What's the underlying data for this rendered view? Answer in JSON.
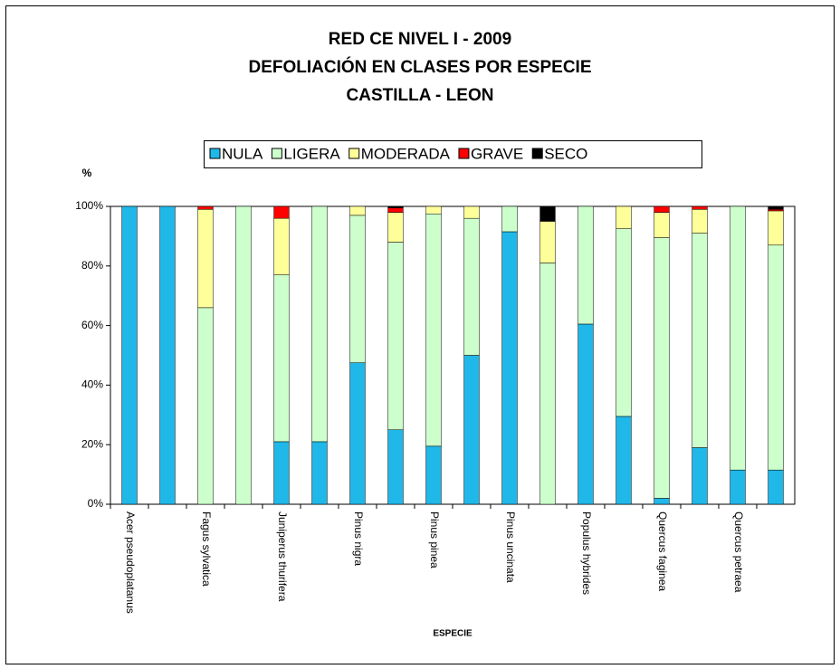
{
  "chart_data": {
    "type": "stacked_bar",
    "title": [
      "RED CE NIVEL I - 2009",
      "DEFOLIACIÓN EN CLASES POR ESPECIE",
      "CASTILLA - LEON"
    ],
    "xlabel": "ESPECIE",
    "ylabel": "%",
    "categories": [
      "Acer pseudoplatanus",
      null,
      "Fagus sylvatica",
      null,
      "Juniperus thurifera",
      null,
      "Pinus nigra",
      null,
      "Pinus pinea",
      null,
      "Pinus uncinata",
      null,
      "Populus hybrides",
      null,
      "Quercus faginea",
      null,
      "Quercus petraea",
      null
    ],
    "series": [
      {
        "name": "NULA",
        "color": "#1fb8e8",
        "values": [
          100,
          100,
          0,
          0,
          21,
          21,
          47.5,
          25,
          19.5,
          50,
          91.5,
          0,
          60.5,
          29.5,
          2,
          19,
          11.5,
          11.5
        ]
      },
      {
        "name": "LIGERA",
        "color": "#ccffcc",
        "values": [
          0,
          0,
          66,
          100,
          56,
          79,
          49.5,
          63,
          78,
          46,
          8.5,
          81,
          39.5,
          63,
          87.5,
          72,
          88.5,
          75.5
        ]
      },
      {
        "name": "MODERADA",
        "color": "#ffff99",
        "values": [
          0,
          0,
          33,
          0,
          19,
          0,
          3,
          10,
          2.5,
          4,
          0,
          14,
          0,
          7.5,
          8.5,
          8,
          0,
          11.5
        ]
      },
      {
        "name": "GRAVE",
        "color": "#ff0000",
        "values": [
          0,
          0,
          1,
          0,
          4,
          0,
          0,
          1.5,
          0,
          0,
          0,
          0,
          0,
          0,
          2,
          1,
          0,
          0.5
        ]
      },
      {
        "name": "SECO",
        "color": "#000000",
        "values": [
          0,
          0,
          0,
          0,
          0,
          0,
          0,
          0.5,
          0,
          0,
          0,
          5,
          0,
          0,
          0,
          0,
          0,
          1
        ]
      }
    ],
    "ylim": [
      0,
      100
    ],
    "yticks": [
      {
        "value": 0,
        "label": "0%"
      },
      {
        "value": 20,
        "label": "20%"
      },
      {
        "value": 40,
        "label": "40%"
      },
      {
        "value": 60,
        "label": "60%"
      },
      {
        "value": 80,
        "label": "80%"
      },
      {
        "value": 100,
        "label": "100%"
      }
    ],
    "legend": "top"
  }
}
